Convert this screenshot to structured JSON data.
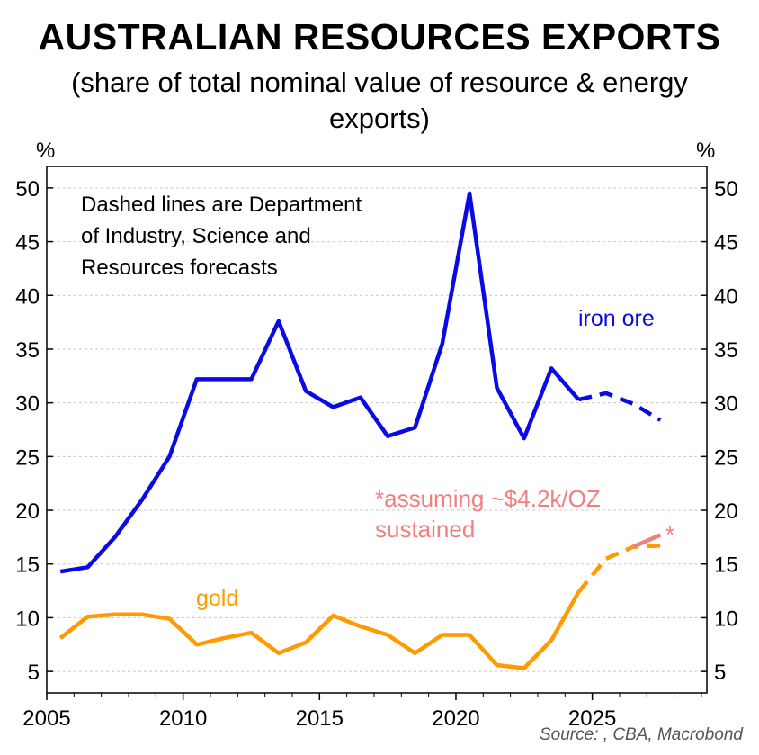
{
  "title": "AUSTRALIAN RESOURCES EXPORTS",
  "subtitle": "(share of total nominal value of resource & energy exports)",
  "source": "Source: , CBA, Macrobond",
  "chart_data": {
    "type": "line",
    "title": "AUSTRALIAN RESOURCES EXPORTS",
    "subtitle": "(share of total nominal value of resource & energy exports)",
    "xlabel": "",
    "ylabel": "%",
    "ylabel_right": "%",
    "xlim": [
      2005,
      2029.2
    ],
    "ylim": [
      3,
      52
    ],
    "x_ticks": [
      2005,
      2010,
      2015,
      2020,
      2025
    ],
    "y_ticks": [
      5,
      10,
      15,
      20,
      25,
      30,
      35,
      40,
      45,
      50
    ],
    "grid": true,
    "note": "Dashed lines are Department of Industry, Science and Resources forecasts",
    "series": [
      {
        "name": "iron ore",
        "color": "#0a0ae6",
        "style": "solid",
        "x": [
          2005.5,
          2006.5,
          2007.5,
          2008.5,
          2009.5,
          2010.5,
          2011.5,
          2012.5,
          2013.5,
          2014.5,
          2015.5,
          2016.5,
          2017.5,
          2018.5,
          2019.5,
          2020.5,
          2021.5,
          2022.5,
          2023.5,
          2024.5
        ],
        "values": [
          14.3,
          14.7,
          17.5,
          21.0,
          25.0,
          32.2,
          32.2,
          32.2,
          37.6,
          31.1,
          29.6,
          30.5,
          26.9,
          27.7,
          35.5,
          49.5,
          31.4,
          26.7,
          33.2,
          30.3
        ]
      },
      {
        "name": "iron ore forecast",
        "color": "#0a0ae6",
        "style": "dashed",
        "x": [
          2024.5,
          2025.5,
          2026.5,
          2027.5
        ],
        "values": [
          30.3,
          30.9,
          29.9,
          28.4
        ]
      },
      {
        "name": "gold",
        "color": "#ff9a00",
        "style": "solid",
        "x": [
          2005.5,
          2006.5,
          2007.5,
          2008.5,
          2009.5,
          2010.5,
          2011.5,
          2012.5,
          2013.5,
          2014.5,
          2015.5,
          2016.5,
          2017.5,
          2018.5,
          2019.5,
          2020.5,
          2021.5,
          2022.5,
          2023.5,
          2024.5
        ],
        "values": [
          8.1,
          10.1,
          10.3,
          10.3,
          9.9,
          7.5,
          8.1,
          8.6,
          6.7,
          7.7,
          10.2,
          9.2,
          8.4,
          6.7,
          8.4,
          8.4,
          5.6,
          5.3,
          7.9,
          12.4
        ]
      },
      {
        "name": "gold forecast",
        "color": "#ff9a00",
        "style": "dashed",
        "x": [
          2024.5,
          2025.5,
          2026.5,
          2027.5
        ],
        "values": [
          12.4,
          15.5,
          16.6,
          16.7
        ]
      },
      {
        "name": "gold *assuming ~$4.2k/OZ sustained",
        "color": "#f08080",
        "style": "solid",
        "x": [
          2026.5,
          2027.5
        ],
        "values": [
          16.6,
          17.7
        ]
      }
    ],
    "annotations": [
      {
        "text": "iron ore",
        "color": "#0a0ae6"
      },
      {
        "text": "gold",
        "color": "#ff9a00"
      },
      {
        "text": "*assuming ~$4.2k/OZ",
        "color": "#f08080"
      },
      {
        "text": "sustained",
        "color": "#f08080"
      },
      {
        "text": "*",
        "color": "#f08080"
      }
    ],
    "note_lines": [
      "Dashed lines are Department",
      "of Industry, Science and",
      "Resources forecasts"
    ]
  }
}
